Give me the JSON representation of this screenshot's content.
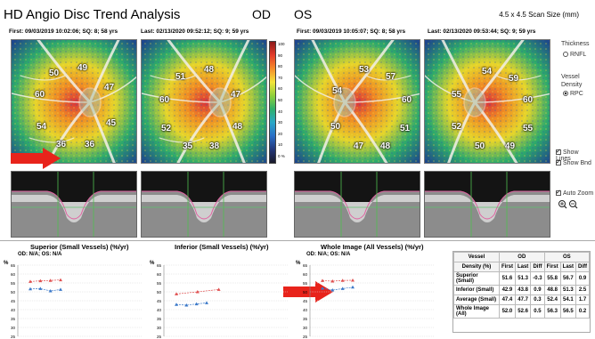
{
  "header": {
    "title": "HD Angio Disc Trend Analysis",
    "od_label": "OD",
    "os_label": "OS",
    "scan_size": "4.5 x 4.5 Scan Size (mm)"
  },
  "exams": {
    "od_first": "First: 09/03/2019 10:02:06; SQ: 8; 58 yrs",
    "od_last": "Last: 02/13/2020 09:52:12; SQ: 9; 59 yrs",
    "os_first": "First: 09/03/2019 10:05:07; SQ: 8; 58 yrs",
    "os_last": "Last: 02/13/2020 09:53:44; SQ: 9; 59 yrs"
  },
  "maps": {
    "od_first": [
      "50",
      "49",
      "60",
      "47",
      "54",
      "45",
      "36",
      "36"
    ],
    "od_last": [
      "51",
      "48",
      "60",
      "47",
      "52",
      "48",
      "35",
      "38"
    ],
    "os_first": [
      "53",
      "57",
      "54",
      "60",
      "50",
      "51",
      "47",
      "48"
    ],
    "os_last": [
      "54",
      "59",
      "55",
      "60",
      "52",
      "55",
      "50",
      "49"
    ]
  },
  "colorbar": [
    "100",
    "90",
    "80",
    "70",
    "60",
    "50",
    "40",
    "30",
    "20",
    "10",
    "0 %"
  ],
  "sidebar": {
    "thickness_label": "Thickness",
    "rnfl_label": "RNFL",
    "vessel_density_label": "Vessel Density",
    "rpc_label": "RPC",
    "show_lines": "Show Lines",
    "show_bnd": "Show Bnd",
    "auto_zoom": "Auto Zoom"
  },
  "charts": [
    {
      "title": "Superior (Small Vessels) (%/yr)",
      "sub": "OD: N/A; OS: N/A"
    },
    {
      "title": "Inferior (Small Vessels) (%/yr)",
      "sub": ""
    },
    {
      "title": "Whole Image (All Vessels) (%/yr)",
      "sub": "OD: N/A; OS: N/A"
    }
  ],
  "axis_unit": "%",
  "chart_data": [
    {
      "type": "scatter",
      "title": "Superior (Small Vessels) (%/yr)",
      "ylabel": "%",
      "ylim": [
        25,
        65
      ],
      "yticks": [
        "65",
        "60",
        "55",
        "50",
        "45",
        "40",
        "35",
        "30",
        "25"
      ],
      "series": [
        {
          "name": "OS",
          "color": "#e05050",
          "values": [
            55.8,
            56.2,
            56.4,
            56.7
          ]
        },
        {
          "name": "OD",
          "color": "#3a78c8",
          "values": [
            51.6,
            51.8,
            50.5,
            51.3
          ]
        }
      ]
    },
    {
      "type": "scatter",
      "title": "Inferior (Small Vessels) (%/yr)",
      "ylabel": "%",
      "ylim": [
        25,
        65
      ],
      "yticks": [
        "65",
        "60",
        "55",
        "50",
        "45",
        "40",
        "35",
        "30",
        "25"
      ],
      "series": [
        {
          "name": "OS",
          "color": "#e05050",
          "values": [
            48.8,
            50.0,
            51.3
          ]
        },
        {
          "name": "OD",
          "color": "#3a78c8",
          "values": [
            42.9,
            42.5,
            43.2,
            43.8
          ]
        }
      ]
    },
    {
      "type": "scatter",
      "title": "Whole Image (All Vessels) (%/yr)",
      "ylabel": "%",
      "ylim": [
        25,
        65
      ],
      "yticks": [
        "65",
        "60",
        "55",
        "50",
        "45",
        "40",
        "35",
        "30",
        "25"
      ],
      "series": [
        {
          "name": "OS",
          "color": "#e05050",
          "values": [
            56.3,
            56.0,
            56.4,
            56.5
          ]
        },
        {
          "name": "OD",
          "color": "#3a78c8",
          "values": [
            52.0,
            51.0,
            51.8,
            52.6
          ]
        }
      ]
    }
  ],
  "table": {
    "head1": [
      "Vessel",
      "OD",
      "OS"
    ],
    "head2": [
      "Density (%)",
      "First",
      "Last",
      "Diff",
      "First",
      "Last",
      "Diff"
    ],
    "rows": [
      [
        "Superior (Small)",
        "51.6",
        "51.3",
        "-0.3",
        "55.8",
        "56.7",
        "0.9"
      ],
      [
        "Inferior (Small)",
        "42.9",
        "43.8",
        "0.9",
        "48.8",
        "51.3",
        "2.5"
      ],
      [
        "Average (Small)",
        "47.4",
        "47.7",
        "0.3",
        "52.4",
        "54.1",
        "1.7"
      ],
      [
        "Whole Image (All)",
        "52.0",
        "52.6",
        "0.5",
        "56.3",
        "56.5",
        "0.2"
      ]
    ]
  },
  "colors": {
    "arrow": "#e8231b",
    "od_series": "#3a78c8",
    "os_series": "#e05050"
  }
}
